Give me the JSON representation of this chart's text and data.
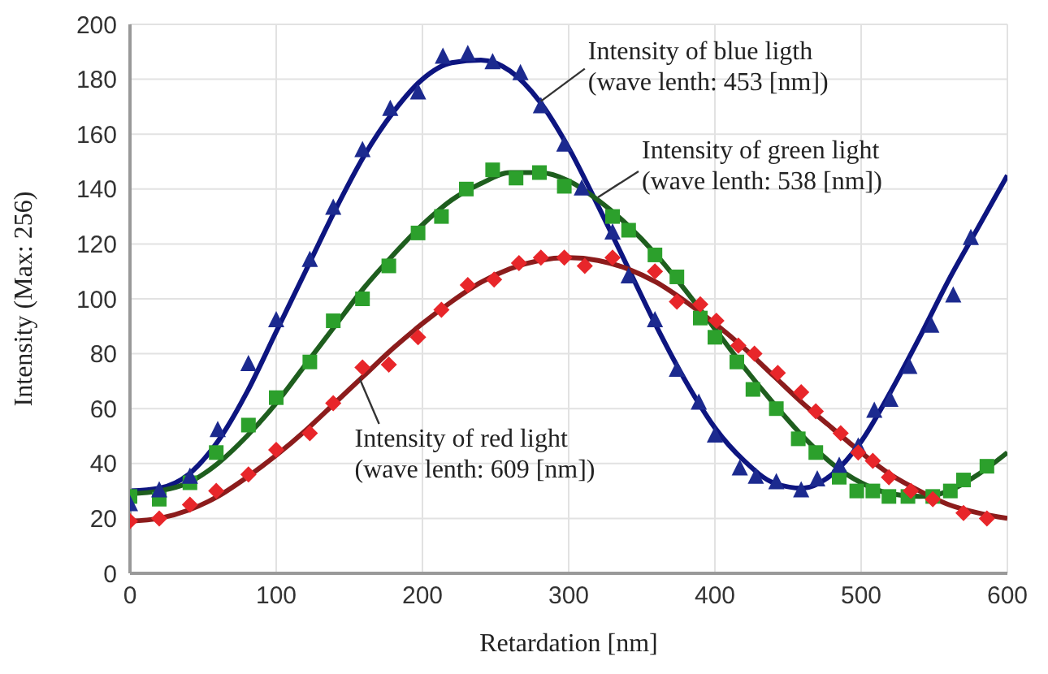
{
  "chart_data": {
    "type": "line",
    "xlabel": "Retardation [nm]",
    "ylabel": "Intensity (Max: 256)",
    "xlim": [
      0,
      600
    ],
    "xticks": [
      0,
      100,
      200,
      300,
      400,
      500,
      600
    ],
    "ylim": [
      0,
      200
    ],
    "yticks": [
      0,
      20,
      40,
      60,
      80,
      100,
      120,
      140,
      160,
      180,
      200
    ],
    "grid": true,
    "series": [
      {
        "type": "scatter",
        "marker": "square",
        "color": "#2ca02c",
        "x": [
          0,
          20,
          41,
          59,
          81,
          100,
          123,
          139,
          159,
          177,
          197,
          213,
          230,
          248,
          264,
          280,
          297,
          330,
          341,
          359,
          374,
          390,
          400,
          415,
          426,
          442,
          457,
          469,
          485,
          497,
          508,
          519,
          532,
          549,
          561,
          570,
          586
        ],
        "values": [
          28,
          27,
          33,
          44,
          54,
          64,
          77,
          92,
          100,
          112,
          124,
          130,
          140,
          147,
          144,
          146,
          141,
          130,
          125,
          116,
          108,
          93,
          86,
          77,
          67,
          60,
          49,
          44,
          35,
          30,
          30,
          28,
          28,
          28,
          30,
          34,
          39
        ]
      },
      {
        "type": "scatter",
        "marker": "triangle",
        "color": "#1c2a8f",
        "x": [
          0,
          20,
          41,
          60,
          81,
          100,
          123,
          139,
          159,
          178,
          197,
          214,
          231,
          248,
          267,
          281,
          297,
          309,
          330,
          341,
          359,
          374,
          389,
          400,
          417,
          428,
          442,
          459,
          470,
          485,
          498,
          509,
          520,
          533,
          548,
          563,
          575
        ],
        "values": [
          25,
          30,
          35,
          52,
          76,
          92,
          114,
          133,
          154,
          169,
          175,
          188,
          189,
          186,
          182,
          170,
          156,
          140,
          124,
          108,
          92,
          74,
          62,
          50,
          38,
          35,
          33,
          30,
          34,
          39,
          46,
          59,
          63,
          75,
          90,
          101,
          122
        ]
      },
      {
        "type": "scatter",
        "marker": "diamond",
        "color": "#e8262a",
        "x": [
          0,
          20,
          41,
          59,
          81,
          100,
          123,
          139,
          159,
          177,
          197,
          213,
          231,
          249,
          266,
          281,
          297,
          311,
          330,
          359,
          374,
          390,
          401,
          416,
          427,
          443,
          459,
          469,
          486,
          498,
          508,
          519,
          534,
          549,
          570,
          586
        ],
        "values": [
          19,
          20,
          25,
          30,
          36,
          45,
          51,
          62,
          75,
          76,
          86,
          96,
          105,
          107,
          113,
          115,
          115,
          112,
          115,
          110,
          99,
          98,
          92,
          83,
          80,
          73,
          66,
          59,
          51,
          44,
          41,
          35,
          30,
          27,
          22,
          20
        ]
      },
      {
        "color": "#0d1580",
        "x": [
          0,
          20,
          40,
          60,
          80,
          100,
          120,
          140,
          160,
          180,
          200,
          220,
          240,
          260,
          280,
          300,
          320,
          340,
          360,
          380,
          400,
          420,
          440,
          460,
          480,
          500,
          520,
          540,
          560,
          580,
          600
        ],
        "values": [
          30,
          31,
          36,
          48,
          66,
          88,
          110,
          132,
          152,
          168,
          180,
          186,
          187,
          183,
          172,
          155,
          134,
          112,
          90,
          70,
          53,
          41,
          33,
          31,
          36,
          48,
          66,
          86,
          107,
          126,
          145
        ]
      },
      {
        "color": "#1e5e1e",
        "x": [
          0,
          20,
          40,
          60,
          80,
          100,
          120,
          140,
          160,
          180,
          200,
          220,
          240,
          260,
          280,
          300,
          320,
          340,
          360,
          380,
          400,
          420,
          440,
          460,
          480,
          500,
          520,
          540,
          560,
          580,
          600
        ],
        "values": [
          29,
          30,
          33,
          40,
          50,
          62,
          76,
          90,
          104,
          116,
          127,
          136,
          142,
          146,
          146,
          143,
          136,
          127,
          116,
          103,
          89,
          75,
          62,
          50,
          40,
          33,
          29,
          28,
          30,
          36,
          44
        ]
      },
      {
        "color": "#8c1c1c",
        "x": [
          0,
          20,
          40,
          60,
          80,
          100,
          120,
          140,
          160,
          180,
          200,
          220,
          240,
          260,
          280,
          300,
          320,
          340,
          360,
          380,
          400,
          420,
          440,
          460,
          480,
          500,
          520,
          540,
          560,
          580,
          600
        ],
        "values": [
          19,
          20,
          23,
          28,
          35,
          43,
          52,
          62,
          72,
          82,
          91,
          99,
          106,
          111,
          114,
          115,
          114,
          111,
          106,
          99,
          91,
          82,
          72,
          62,
          53,
          44,
          36,
          30,
          25,
          22,
          20
        ]
      }
    ],
    "annotations": [
      {
        "text": "Intensity of blue ligth\n(wave lenth: 453 [nm])",
        "x": 281,
        "y": 172
      },
      {
        "text": "Intensity of green light\n(wave lenth: 538 [nm])",
        "x": 320,
        "y": 137
      },
      {
        "text": "Intensity of red light\n(wave lenth: 609 [nm])",
        "x": 157,
        "y": 71
      }
    ]
  }
}
